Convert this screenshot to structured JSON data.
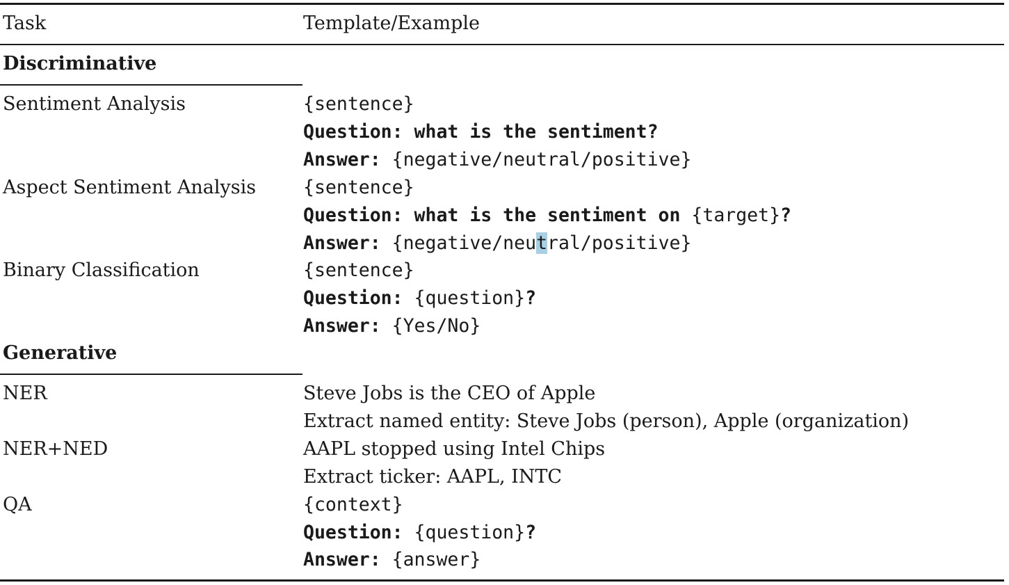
{
  "table": {
    "header": {
      "task": "Task",
      "template": "Template/Example"
    },
    "sections": [
      {
        "title": "Discriminative",
        "rows": [
          {
            "task": "Sentiment Analysis",
            "lines": [
              {
                "plain": "",
                "ph": "{sentence}"
              },
              {
                "plain": "Question: what is the sentiment?",
                "ph": ""
              },
              {
                "plain": "Answer: ",
                "ph": "{negative/neutral/positive}"
              }
            ]
          },
          {
            "task": "Aspect Sentiment Analysis",
            "lines": [
              {
                "plain": "",
                "ph": "{sentence}"
              },
              {
                "plain": "Question: what is the sentiment on ",
                "ph": "{target}",
                "after": "?"
              },
              {
                "plain": "Answer: ",
                "ph_a": "{negative/neu",
                "ph_hl": "t",
                "ph_b": "ral/positive}"
              }
            ]
          },
          {
            "task": "Binary Classification",
            "lines": [
              {
                "plain": "",
                "ph": "{sentence}"
              },
              {
                "plain": "Question: ",
                "ph": "{question}",
                "after": "?"
              },
              {
                "plain": "Answer: ",
                "ph": "{Yes/No}"
              }
            ]
          }
        ]
      },
      {
        "title": "Generative",
        "rows": [
          {
            "task": "NER",
            "lines": [
              {
                "text": "Steve Jobs is the CEO of Apple"
              },
              {
                "text": "Extract named entity: Steve Jobs (person), Apple (organization)"
              }
            ]
          },
          {
            "task": "NER+NED",
            "lines": [
              {
                "text": "AAPL stopped using Intel Chips"
              },
              {
                "text": "Extract ticker: AAPL, INTC"
              }
            ]
          },
          {
            "task": "QA",
            "lines": [
              {
                "plain": "",
                "ph": "{context}"
              },
              {
                "plain": "Question: ",
                "ph": "{question}",
                "after": "?"
              },
              {
                "plain": "Answer: ",
                "ph": "{answer}"
              }
            ]
          }
        ]
      }
    ]
  }
}
